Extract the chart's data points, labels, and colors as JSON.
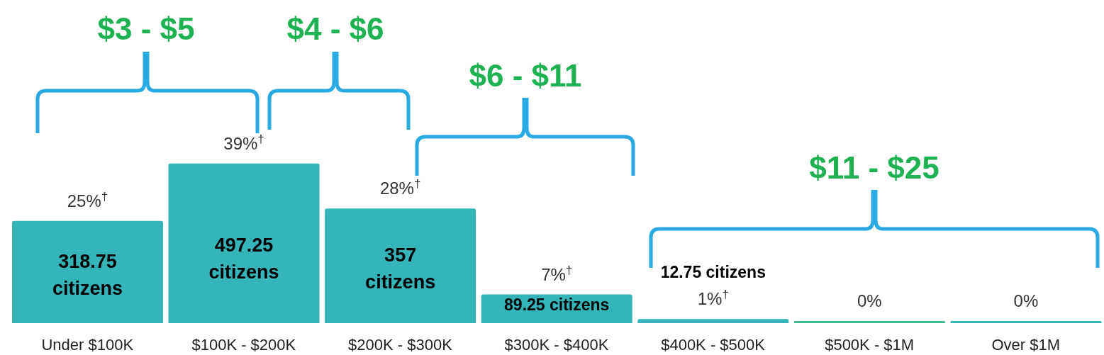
{
  "chart_data": {
    "type": "bar",
    "categories": [
      "Under $100K",
      "$100K - $200K",
      "$200K - $300K",
      "$300K - $400K",
      "$400K - $500K",
      "$500K - $1M",
      "Over $1M"
    ],
    "values": [
      25,
      39,
      28,
      7,
      1,
      0,
      0
    ],
    "value_labels": [
      "25%$^{†}$",
      "39%$^{†}$",
      "28%$^{†}$",
      "7%$^{†}$",
      "1%$^{†}$",
      "0%",
      "0%"
    ],
    "colors": [
      "#35b5b8",
      "#35b5b8",
      "#35b5b8",
      "#35b5b8",
      "#35b5b8",
      "#3dbb97",
      "#35b5b8"
    ],
    "annotations": [
      "318.75 citizens",
      "497.25 citizens",
      "357 citizens",
      "89.25 citizens",
      "12.75 citizens",
      "$3 - $5",
      "$4 - $6",
      "$6 - $11",
      "$11 - $25"
    ],
    "legend": false,
    "grid": false
  }
}
